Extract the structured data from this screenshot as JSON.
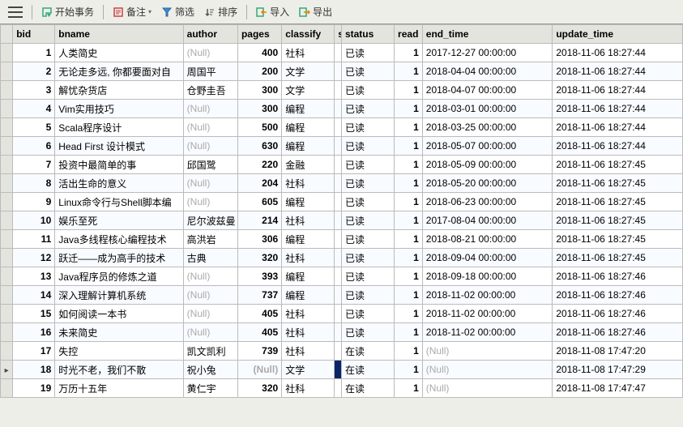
{
  "toolbar": {
    "start_tx": "开始事务",
    "note": "备注",
    "filter": "筛选",
    "sort": "排序",
    "import": "导入",
    "export": "导出"
  },
  "columns": [
    {
      "key": "bid",
      "label": "bid",
      "width": 48,
      "align": "right",
      "bold": true
    },
    {
      "key": "bname",
      "label": "bname",
      "width": 146,
      "align": "left"
    },
    {
      "key": "author",
      "label": "author",
      "width": 62,
      "align": "left"
    },
    {
      "key": "pages",
      "label": "pages",
      "width": 50,
      "align": "right",
      "bold": true
    },
    {
      "key": "classify",
      "label": "classify",
      "width": 60,
      "align": "left"
    },
    {
      "key": "s",
      "label": "s",
      "width": 8,
      "align": "left"
    },
    {
      "key": "status",
      "label": "status",
      "width": 60,
      "align": "left"
    },
    {
      "key": "read",
      "label": "read",
      "width": 32,
      "align": "right",
      "bold": true
    },
    {
      "key": "end_time",
      "label": "end_time",
      "width": 148,
      "align": "left"
    },
    {
      "key": "update_time",
      "label": "update_time",
      "width": 148,
      "align": "left"
    }
  ],
  "selected_row": 17,
  "selected_col": 5,
  "rows": [
    {
      "bid": 1,
      "bname": "人类简史",
      "author": null,
      "pages": 400,
      "classify": "社科",
      "s": "",
      "status": "已读",
      "read": 1,
      "end_time": "2017-12-27 00:00:00",
      "update_time": "2018-11-06 18:27:44"
    },
    {
      "bid": 2,
      "bname": "无论走多远, 你都要面对自",
      "author": "周国平",
      "pages": 200,
      "classify": "文学",
      "s": "",
      "status": "已读",
      "read": 1,
      "end_time": "2018-04-04 00:00:00",
      "update_time": "2018-11-06 18:27:44"
    },
    {
      "bid": 3,
      "bname": "解忧杂货店",
      "author": "仓野圭吾",
      "pages": 300,
      "classify": "文学",
      "s": "",
      "status": "已读",
      "read": 1,
      "end_time": "2018-04-07 00:00:00",
      "update_time": "2018-11-06 18:27:44"
    },
    {
      "bid": 4,
      "bname": "Vim实用技巧",
      "author": null,
      "pages": 300,
      "classify": "编程",
      "s": "",
      "status": "已读",
      "read": 1,
      "end_time": "2018-03-01 00:00:00",
      "update_time": "2018-11-06 18:27:44"
    },
    {
      "bid": 5,
      "bname": "Scala程序设计",
      "author": null,
      "pages": 500,
      "classify": "编程",
      "s": "",
      "status": "已读",
      "read": 1,
      "end_time": "2018-03-25 00:00:00",
      "update_time": "2018-11-06 18:27:44"
    },
    {
      "bid": 6,
      "bname": "Head First 设计模式",
      "author": null,
      "pages": 630,
      "classify": "编程",
      "s": "",
      "status": "已读",
      "read": 1,
      "end_time": "2018-05-07 00:00:00",
      "update_time": "2018-11-06 18:27:44"
    },
    {
      "bid": 7,
      "bname": "投资中最简单的事",
      "author": "邱国鹭",
      "pages": 220,
      "classify": "金融",
      "s": "",
      "status": "已读",
      "read": 1,
      "end_time": "2018-05-09 00:00:00",
      "update_time": "2018-11-06 18:27:45"
    },
    {
      "bid": 8,
      "bname": "活出生命的意义",
      "author": null,
      "pages": 204,
      "classify": "社科",
      "s": "",
      "status": "已读",
      "read": 1,
      "end_time": "2018-05-20 00:00:00",
      "update_time": "2018-11-06 18:27:45"
    },
    {
      "bid": 9,
      "bname": "Linux命令行与Shell脚本编",
      "author": null,
      "pages": 605,
      "classify": "编程",
      "s": "",
      "status": "已读",
      "read": 1,
      "end_time": "2018-06-23 00:00:00",
      "update_time": "2018-11-06 18:27:45"
    },
    {
      "bid": 10,
      "bname": "娱乐至死",
      "author": "尼尔波兹曼",
      "pages": 214,
      "classify": "社科",
      "s": "",
      "status": "已读",
      "read": 1,
      "end_time": "2017-08-04 00:00:00",
      "update_time": "2018-11-06 18:27:45"
    },
    {
      "bid": 11,
      "bname": "Java多线程核心编程技术",
      "author": "高洪岩",
      "pages": 306,
      "classify": "编程",
      "s": "",
      "status": "已读",
      "read": 1,
      "end_time": "2018-08-21 00:00:00",
      "update_time": "2018-11-06 18:27:45"
    },
    {
      "bid": 12,
      "bname": "跃迁——成为高手的技术",
      "author": "古典",
      "pages": 320,
      "classify": "社科",
      "s": "",
      "status": "已读",
      "read": 1,
      "end_time": "2018-09-04 00:00:00",
      "update_time": "2018-11-06 18:27:45"
    },
    {
      "bid": 13,
      "bname": "Java程序员的修炼之道",
      "author": null,
      "pages": 393,
      "classify": "编程",
      "s": "",
      "status": "已读",
      "read": 1,
      "end_time": "2018-09-18 00:00:00",
      "update_time": "2018-11-06 18:27:46"
    },
    {
      "bid": 14,
      "bname": "深入理解计算机系统",
      "author": null,
      "pages": 737,
      "classify": "编程",
      "s": "",
      "status": "已读",
      "read": 1,
      "end_time": "2018-11-02 00:00:00",
      "update_time": "2018-11-06 18:27:46"
    },
    {
      "bid": 15,
      "bname": "如何阅读一本书",
      "author": null,
      "pages": 405,
      "classify": "社科",
      "s": "",
      "status": "已读",
      "read": 1,
      "end_time": "2018-11-02 00:00:00",
      "update_time": "2018-11-06 18:27:46"
    },
    {
      "bid": 16,
      "bname": "未来简史",
      "author": null,
      "pages": 405,
      "classify": "社科",
      "s": "",
      "status": "已读",
      "read": 1,
      "end_time": "2018-11-02 00:00:00",
      "update_time": "2018-11-06 18:27:46"
    },
    {
      "bid": 17,
      "bname": "失控",
      "author": "凯文凯利",
      "pages": 739,
      "classify": "社科",
      "s": "",
      "status": "在读",
      "read": 1,
      "end_time": null,
      "update_time": "2018-11-08 17:47:20"
    },
    {
      "bid": 18,
      "bname": "时光不老，我们不散",
      "author": "祝小兔",
      "pages": null,
      "classify": "文学",
      "s": "",
      "status": "在读",
      "read": 1,
      "end_time": null,
      "update_time": "2018-11-08 17:47:29"
    },
    {
      "bid": 19,
      "bname": "万历十五年",
      "author": "黄仁宇",
      "pages": 320,
      "classify": "社科",
      "s": "",
      "status": "在读",
      "read": 1,
      "end_time": null,
      "update_time": "2018-11-08 17:47:47"
    }
  ]
}
